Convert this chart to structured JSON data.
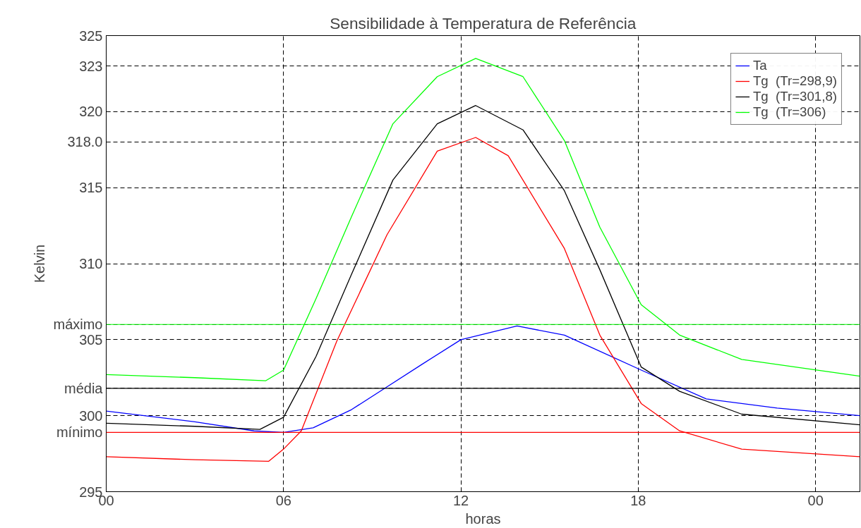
{
  "chart_data": {
    "type": "line",
    "title": "Sensibilidade à Temperatura de Referência",
    "xlabel": "horas",
    "ylabel": "Kelvin",
    "xlim": [
      0,
      25.5
    ],
    "xticks": [
      {
        "value": 0,
        "label": "00"
      },
      {
        "value": 6,
        "label": "06"
      },
      {
        "value": 12,
        "label": "12"
      },
      {
        "value": 18,
        "label": "18"
      },
      {
        "value": 24,
        "label": "00"
      }
    ],
    "ylim": [
      295,
      325
    ],
    "yticks": [
      295,
      {
        "value": 298.9,
        "label": "mínimo"
      },
      300,
      {
        "value": 301.8,
        "label": "média"
      },
      305,
      {
        "value": 306,
        "label": "máximo"
      },
      310,
      315,
      {
        "value": 318,
        "label": "318.0"
      },
      320,
      323,
      325
    ],
    "grid": true,
    "legend": "top right",
    "marker": "none",
    "line_style": "solid",
    "ref_lines": [
      {
        "axis": "y",
        "value": 298.9,
        "color": "#ff0000"
      },
      {
        "axis": "y",
        "value": 301.8,
        "color": "#000000"
      },
      {
        "axis": "y",
        "value": 306,
        "color": "#00ff00"
      }
    ],
    "series": [
      {
        "name": "Ta",
        "color": "#0000ff",
        "x": [
          0,
          3,
          5,
          6,
          7,
          8.3,
          9.5,
          10.7,
          12,
          13.9,
          15.5,
          18.1,
          20.3,
          22.7,
          25.5
        ],
        "values": [
          300.3,
          299.6,
          299.0,
          298.9,
          299.2,
          300.4,
          301.9,
          303.4,
          305.0,
          305.9,
          305.3,
          303.0,
          301.1,
          300.5,
          300.0
        ]
      },
      {
        "name": "Tg  (Tr=298,9)",
        "color": "#ff0000",
        "x": [
          0,
          3,
          5.5,
          6,
          6.6,
          7.8,
          9.5,
          11.2,
          12.5,
          13.6,
          15.5,
          16.7,
          18.1,
          19.4,
          21.5,
          25.5
        ],
        "values": [
          297.3,
          297.1,
          297.0,
          297.8,
          299.0,
          304.9,
          311.9,
          317.4,
          318.3,
          317.1,
          311.0,
          305.3,
          300.8,
          299.0,
          297.8,
          297.3
        ]
      },
      {
        "name": "Tg  (Tr=301,8)",
        "color": "#000000",
        "x": [
          0,
          3,
          5.2,
          6,
          7.1,
          8.3,
          9.7,
          11.2,
          12.5,
          14.1,
          15.5,
          16.7,
          18.1,
          19.4,
          21.5,
          25.5
        ],
        "values": [
          299.5,
          299.3,
          299.1,
          299.9,
          303.9,
          309.3,
          315.5,
          319.2,
          320.4,
          318.8,
          314.8,
          309.6,
          303.2,
          301.6,
          300.1,
          299.4
        ]
      },
      {
        "name": "Tg  (Tr=306)",
        "color": "#00ff00",
        "x": [
          0,
          3,
          5.4,
          6,
          7.1,
          8.3,
          9.7,
          11.2,
          12.5,
          14.1,
          15.5,
          16.7,
          18.1,
          19.4,
          21.5,
          25.5
        ],
        "values": [
          302.7,
          302.5,
          302.3,
          303.0,
          307.7,
          313.1,
          319.2,
          322.3,
          323.5,
          322.3,
          318.1,
          312.4,
          307.3,
          305.3,
          303.7,
          302.6
        ]
      }
    ]
  }
}
